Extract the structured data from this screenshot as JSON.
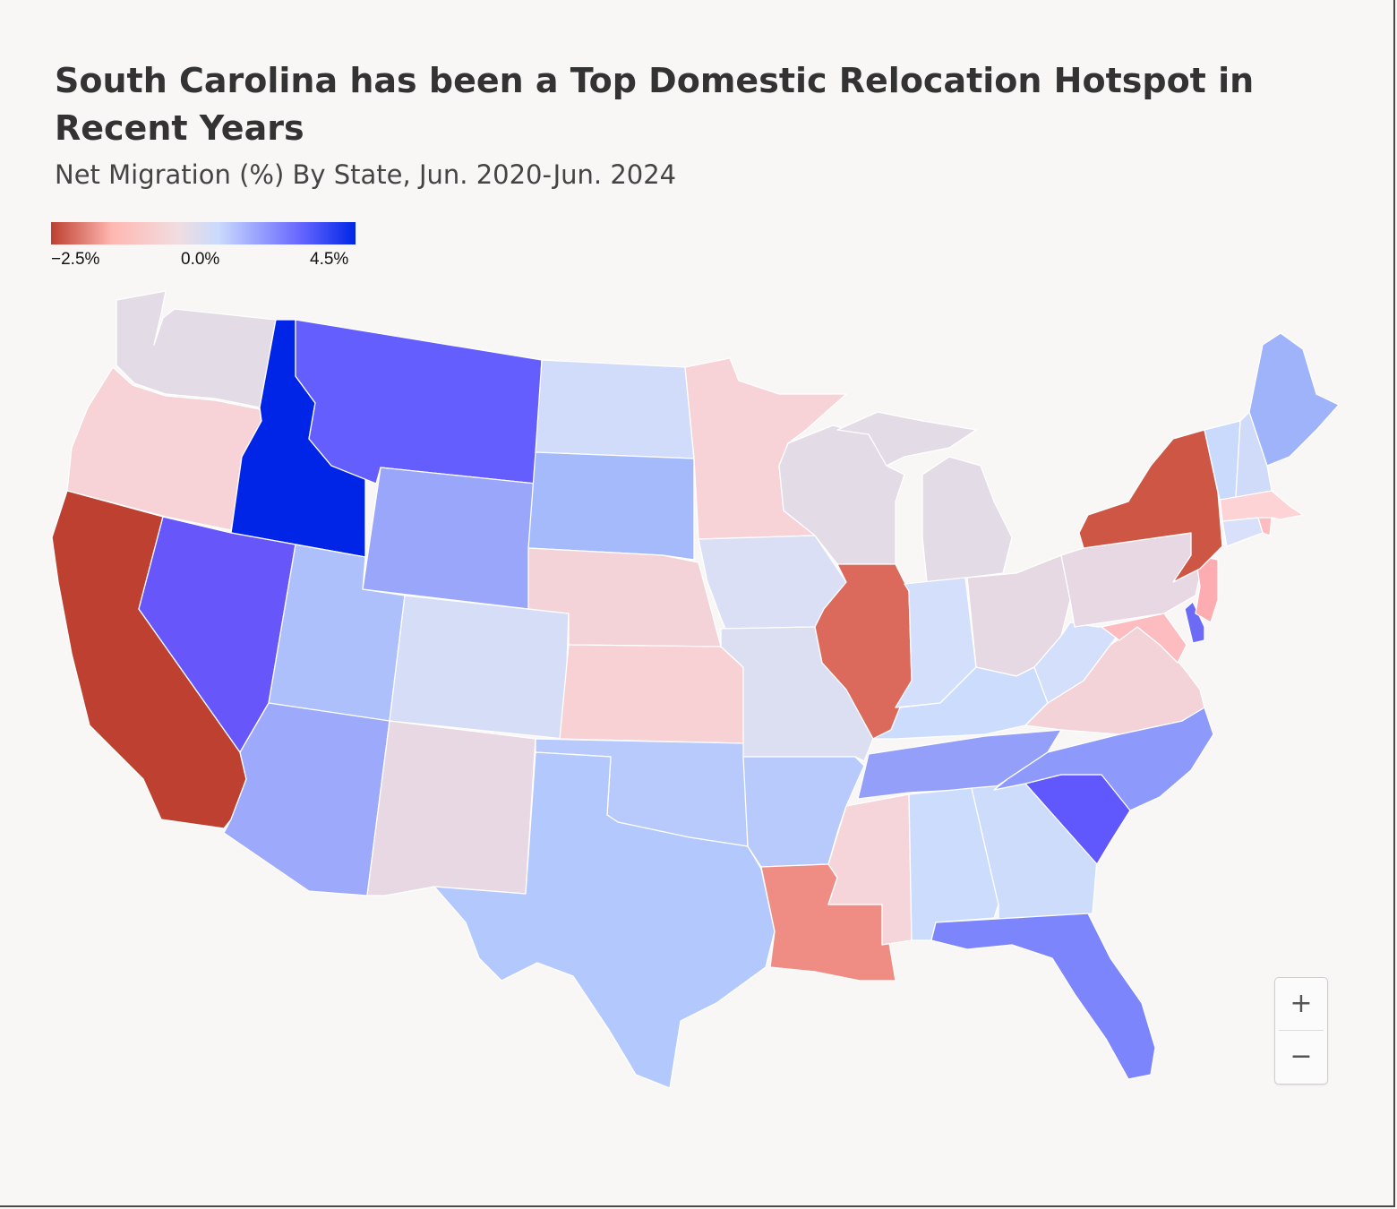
{
  "title": "South Carolina has been a Top Domestic Relocation Hotspot in Recent Years",
  "subtitle": "Net Migration (%) By State, Jun. 2020-Jun. 2024",
  "legend": {
    "ticks": [
      "−2.5%",
      "0.0%",
      "4.5%"
    ],
    "colors": [
      "#bd4030",
      "#ffb7b1",
      "#f0dde0",
      "#c9dafc",
      "#6666ff",
      "#0025e6"
    ]
  },
  "zoom": {
    "in_label": "+",
    "out_label": "−"
  },
  "chart_data": {
    "type": "choropleth",
    "region": "contiguous United States",
    "metric": "Net Migration (%)",
    "color_range": [
      -2.5,
      4.5
    ],
    "states": [
      {
        "name": "Washington",
        "color": "#e3dbe6"
      },
      {
        "name": "Oregon",
        "color": "#f7d3d7"
      },
      {
        "name": "California",
        "color": "#bd4030"
      },
      {
        "name": "Idaho",
        "color": "#0025e6"
      },
      {
        "name": "Nevada",
        "color": "#6757fa"
      },
      {
        "name": "Montana",
        "color": "#655eff"
      },
      {
        "name": "Wyoming",
        "color": "#99a6fa"
      },
      {
        "name": "Utah",
        "color": "#adc0fc"
      },
      {
        "name": "Arizona",
        "color": "#9da9fb"
      },
      {
        "name": "Colorado",
        "color": "#d6ddf7"
      },
      {
        "name": "New Mexico",
        "color": "#e8d8e3"
      },
      {
        "name": "North Dakota",
        "color": "#d1dcfa"
      },
      {
        "name": "South Dakota",
        "color": "#a5bafa"
      },
      {
        "name": "Nebraska",
        "color": "#f4d3d8"
      },
      {
        "name": "Kansas",
        "color": "#f7d1d4"
      },
      {
        "name": "Oklahoma",
        "color": "#b8c9fc"
      },
      {
        "name": "Texas",
        "color": "#b3c8fd"
      },
      {
        "name": "Minnesota",
        "color": "#f7d3d7"
      },
      {
        "name": "Iowa",
        "color": "#dadff5"
      },
      {
        "name": "Missouri",
        "color": "#dcdff2"
      },
      {
        "name": "Arkansas",
        "color": "#b8c9fc"
      },
      {
        "name": "Louisiana",
        "color": "#ef8c84"
      },
      {
        "name": "Wisconsin",
        "color": "#e3dbe6"
      },
      {
        "name": "Illinois",
        "color": "#dc6a5c"
      },
      {
        "name": "Michigan",
        "color": "#e3dbe6"
      },
      {
        "name": "Indiana",
        "color": "#d4dffb"
      },
      {
        "name": "Ohio",
        "color": "#e7d9e3"
      },
      {
        "name": "Kentucky",
        "color": "#cbdcfd"
      },
      {
        "name": "Tennessee",
        "color": "#949ffa"
      },
      {
        "name": "Mississippi",
        "color": "#f5d5da"
      },
      {
        "name": "Alabama",
        "color": "#cbdcfd"
      },
      {
        "name": "Georgia",
        "color": "#cddcfa"
      },
      {
        "name": "Florida",
        "color": "#7d85fc"
      },
      {
        "name": "South Carolina",
        "color": "#6057fc"
      },
      {
        "name": "North Carolina",
        "color": "#8d99fb"
      },
      {
        "name": "Virginia",
        "color": "#f4d3d8"
      },
      {
        "name": "West Virginia",
        "color": "#d4dffb"
      },
      {
        "name": "Pennsylvania",
        "color": "#e8d8e3"
      },
      {
        "name": "Maryland",
        "color": "#fdbcbf"
      },
      {
        "name": "Delaware",
        "color": "#6c6bf5"
      },
      {
        "name": "New Jersey",
        "color": "#fdadb1"
      },
      {
        "name": "New York",
        "color": "#cd5744"
      },
      {
        "name": "Connecticut",
        "color": "#d9e0f9"
      },
      {
        "name": "Rhode Island",
        "color": "#fdbcbf"
      },
      {
        "name": "Massachusetts",
        "color": "#fdd3d5"
      },
      {
        "name": "Vermont",
        "color": "#c9dafc"
      },
      {
        "name": "New Hampshire",
        "color": "#cfdbf9"
      },
      {
        "name": "Maine",
        "color": "#9eb3fa"
      }
    ]
  }
}
